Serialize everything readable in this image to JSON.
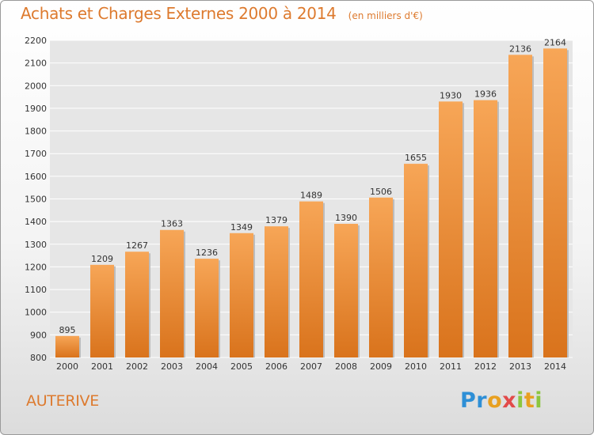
{
  "header": {
    "title": "Achats et Charges Externes 2000 à 2014",
    "unit": "(en milliers d'€)"
  },
  "footer": {
    "commune": "AUTERIVE",
    "logo_text": "Proxiti"
  },
  "chart_data": {
    "type": "bar",
    "title": "Achats et Charges Externes 2000 à 2014",
    "subtitle": "(en milliers d'€)",
    "xlabel": "",
    "ylabel": "",
    "categories": [
      "2000",
      "2001",
      "2002",
      "2003",
      "2004",
      "2005",
      "2006",
      "2007",
      "2008",
      "2009",
      "2010",
      "2011",
      "2012",
      "2013",
      "2014"
    ],
    "values": [
      895,
      1209,
      1267,
      1363,
      1236,
      1349,
      1379,
      1489,
      1390,
      1506,
      1655,
      1930,
      1936,
      2136,
      2164
    ],
    "ylim": [
      800,
      2200
    ],
    "yticks": [
      800,
      900,
      1000,
      1100,
      1200,
      1300,
      1400,
      1500,
      1600,
      1700,
      1800,
      1900,
      2000,
      2100,
      2200
    ],
    "grid": true,
    "legend": "none",
    "colors": {
      "bar_light": "#f7a657",
      "bar_dark": "#d9731c",
      "grid": "#ffffff",
      "text_accent": "#dd7a2e"
    }
  }
}
